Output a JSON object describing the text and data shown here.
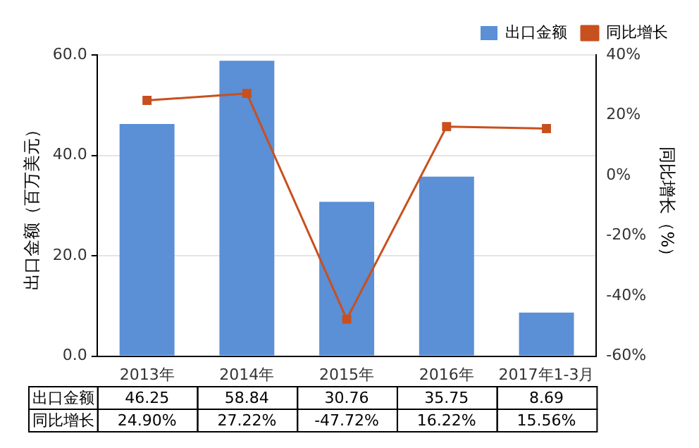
{
  "chart_data": {
    "type": "bar",
    "categories": [
      "2013年",
      "2014年",
      "2015年",
      "2016年",
      "2017年1-3月"
    ],
    "ylabel": "出口金额（百万美元）",
    "y2label": "同比增长（%）",
    "series": [
      {
        "name": "出口金额",
        "color": "#5b8fd6",
        "values": [
          46.25,
          58.84,
          30.76,
          35.75,
          8.69
        ],
        "value_labels": [
          "46.25",
          "58.84",
          "30.76",
          "35.75",
          "8.69"
        ]
      },
      {
        "name": "同比增长",
        "type": "line",
        "axis": "y2",
        "color": "#c8501e",
        "marker": "square",
        "values": [
          24.9,
          27.22,
          -47.72,
          16.22,
          15.56
        ],
        "value_labels": [
          "24.90%",
          "27.22%",
          "-47.72%",
          "16.22%",
          "15.56%"
        ]
      }
    ],
    "ylim": [
      0,
      60
    ],
    "yticks": [
      {
        "value": 0,
        "label": "0.0"
      },
      {
        "value": 20,
        "label": "20.0"
      },
      {
        "value": 40,
        "label": "40.0"
      },
      {
        "value": 60,
        "label": "60.0"
      }
    ],
    "y2lim": [
      -60,
      40
    ],
    "y2ticks": [
      {
        "value": -60,
        "label": "-60%"
      },
      {
        "value": -40,
        "label": "-40%"
      },
      {
        "value": -20,
        "label": "-20%"
      },
      {
        "value": 0,
        "label": "0%"
      },
      {
        "value": 20,
        "label": "20%"
      },
      {
        "value": 40,
        "label": "40%"
      }
    ],
    "grid": "y",
    "legend": "top right"
  }
}
